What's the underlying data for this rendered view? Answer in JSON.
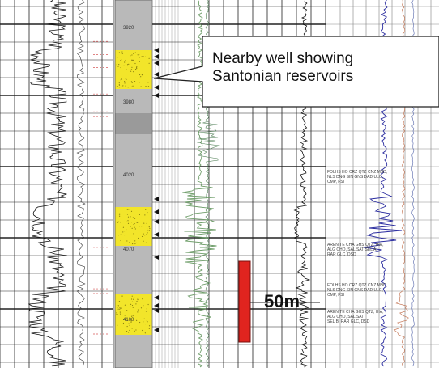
{
  "callout": {
    "line1": "Nearby well showing",
    "line2": "Santonian reservoirs"
  },
  "scale_bar": {
    "label": "50m"
  },
  "depth_labels": [
    "3920",
    "3980",
    "4020",
    "4070",
    "4100"
  ],
  "interpretation_notes": [
    [
      "FOLHS HO CRZ QTZ CNZ MBD,",
      "NLS DNG SIN GNS DAD ULC,",
      "CMP, FSI"
    ],
    [
      "ARENITE CHA GHS QTZ, HIA,",
      "ALG CHO, SAL SAT SEL A,",
      "RAR GLC, DSD"
    ],
    [
      "FOLHS HO CRZ QTZ CNZ MBD,",
      "NLS DNG SIN GNS DAD ULC,",
      "CMP, FSI"
    ],
    [
      "ARENITE CHA GHS QTZ, HIA,",
      "ALG CHO, SAL SAT,",
      "SEL B, RAR GLC, DSD"
    ]
  ],
  "colors": {
    "reservoir_sand": "#f2e52a",
    "lithology_gray": "#b9b9b9",
    "gamma_curve": "#6f9e6a",
    "resistivity_curve": "#2c2ea0",
    "scale_bar": "#e0241f",
    "grid": "#222222"
  }
}
